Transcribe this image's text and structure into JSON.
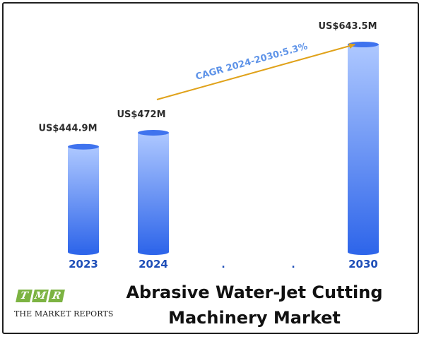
{
  "chart_data": {
    "type": "bar",
    "categories": [
      "2023",
      "2024",
      ".",
      ".",
      "2030"
    ],
    "values": [
      444.9,
      472,
      null,
      null,
      643.5
    ],
    "data_labels": [
      "US$444.9M",
      "US$472M",
      "",
      "",
      "US$643.5M"
    ],
    "annotation": "CAGR 2024-2030:5.3%",
    "title": "Abrasive Water-Jet Cutting Machinery Market"
  },
  "colors": {
    "bar_top": "#aec8ff",
    "bar_bottom": "#2f66ea",
    "bar_cap": "#3f73ee",
    "arrow": "#e0a21a",
    "year_text": "#1f4fb8",
    "logo_green": "#7cb342"
  },
  "logo": {
    "letters": [
      "T",
      "M",
      "R"
    ],
    "text": "THE MARKET REPORTS"
  }
}
